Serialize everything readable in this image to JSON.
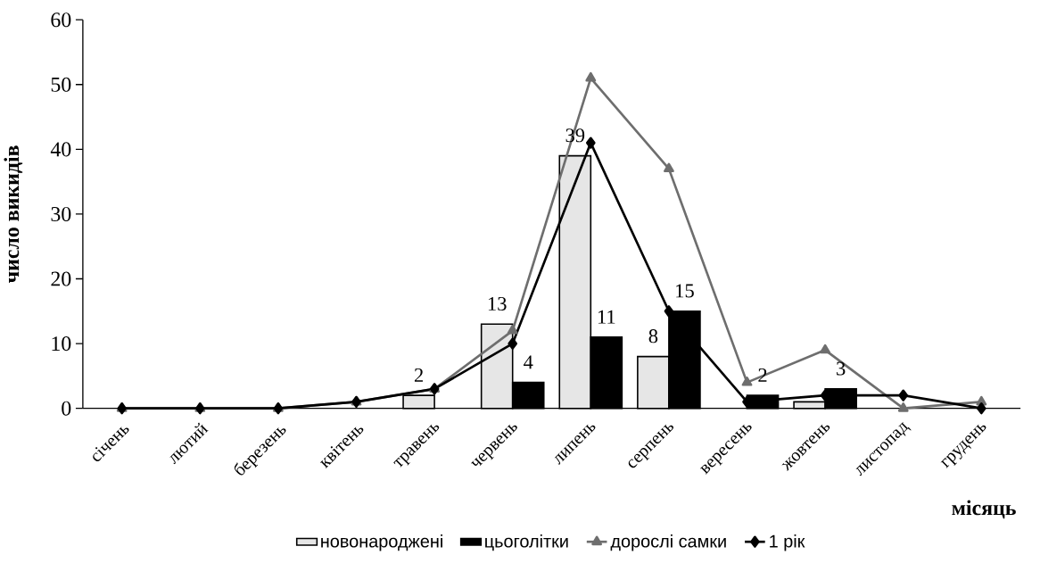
{
  "chart_data": {
    "type": "bar",
    "xlabel": "місяць",
    "ylabel": "число викидів",
    "categories": [
      "січень",
      "лютий",
      "березень",
      "квітень",
      "травень",
      "червень",
      "липень",
      "серпень",
      "вересень",
      "жовтень",
      "листопад",
      "грудень"
    ],
    "series": [
      {
        "name": "новонароджені",
        "color": "#e6e6e6",
        "values": [
          0,
          0,
          0,
          0,
          2,
          13,
          39,
          8,
          0,
          1,
          0,
          0
        ],
        "value_labels": [
          null,
          null,
          null,
          null,
          "2",
          "13",
          "39",
          "8",
          null,
          null,
          null,
          null
        ]
      },
      {
        "name": "цьоголітки",
        "color": "#000000",
        "values": [
          0,
          0,
          0,
          0,
          0,
          4,
          11,
          15,
          2,
          3,
          0,
          0
        ],
        "value_labels": [
          null,
          null,
          null,
          null,
          null,
          "4",
          "11",
          "15",
          "2",
          "3",
          null,
          null
        ]
      },
      {
        "name": "дорослі самки",
        "type": "line",
        "marker": "triangle",
        "color": "#6e6e6e",
        "values": [
          0,
          0,
          0,
          1,
          3,
          12,
          51,
          37,
          4,
          9,
          0,
          1
        ]
      },
      {
        "name": "1 рік",
        "type": "line",
        "marker": "diamond",
        "color": "#000000",
        "values": [
          0,
          0,
          0,
          1,
          3,
          10,
          41,
          15,
          1,
          2,
          2,
          0
        ]
      }
    ],
    "ylim": [
      0,
      60
    ],
    "yticks": [
      0,
      10,
      20,
      30,
      40,
      50,
      60
    ],
    "legend": "bottom"
  }
}
